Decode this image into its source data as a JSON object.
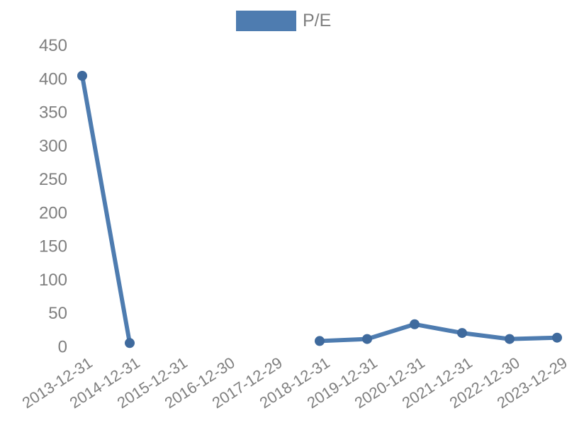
{
  "chart_data": {
    "type": "line",
    "categories": [
      "2013-12-31",
      "2014-12-31",
      "2015-12-31",
      "2016-12-30",
      "2017-12-29",
      "2018-12-31",
      "2019-12-31",
      "2020-12-31",
      "2021-12-31",
      "2022-12-30",
      "2023-12-29"
    ],
    "series": [
      {
        "name": "P/E",
        "values": [
          404,
          5,
          null,
          null,
          null,
          8,
          11,
          33,
          20,
          11,
          13
        ]
      }
    ],
    "ylim": [
      0,
      450
    ],
    "ytick_step": 50,
    "yticks": [
      0,
      50,
      100,
      150,
      200,
      250,
      300,
      350,
      400,
      450
    ],
    "grid": false,
    "axis_lines": false,
    "legend_position": "top-center",
    "x_label_rotation_deg": -33,
    "colors": {
      "line": "#4e7cb0",
      "marker": "#3f6a9d",
      "legend_swatch": "#4e7cb0",
      "tick_text": "#7f7f7f",
      "background": "#ffffff"
    }
  }
}
